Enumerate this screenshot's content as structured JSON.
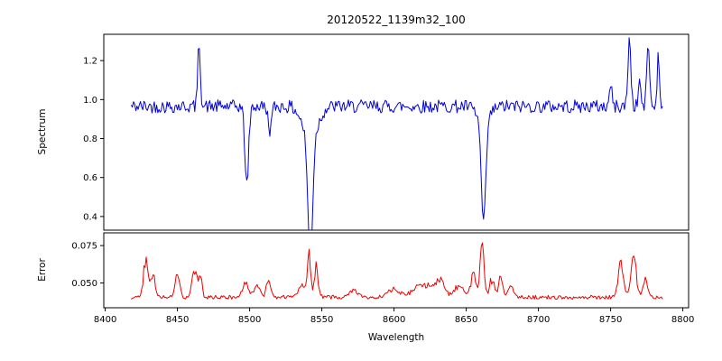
{
  "figure": {
    "title": "20120522_1139m32_100",
    "background": "#ffffff",
    "frame_color": "#000000"
  },
  "chart_data": [
    {
      "type": "line",
      "name": "spectrum",
      "title": "20120522_1139m32_100",
      "ylabel": "Spectrum",
      "color": "#0000dd",
      "xlim": [
        8399,
        8804
      ],
      "ylim": [
        0.33,
        1.335
      ],
      "yticks": [
        0.4,
        0.6,
        0.8,
        1.0,
        1.2
      ],
      "ytick_labels": [
        "0.4",
        "0.6",
        "0.8",
        "1.0",
        "1.2"
      ],
      "x_start": 8418,
      "x_end": 8786,
      "x_step": 0.8,
      "baseline": 0.965,
      "noise": 0.034,
      "seed": 42,
      "absorption_lines": [
        {
          "center": 8498,
          "depth": 0.4,
          "width": 1.3
        },
        {
          "center": 8542,
          "depth": 0.62,
          "width": 1.6
        },
        {
          "center": 8542,
          "depth": 0.17,
          "width": 5.0
        },
        {
          "center": 8662,
          "depth": 0.52,
          "width": 1.5
        },
        {
          "center": 8662,
          "depth": 0.09,
          "width": 4.0
        },
        {
          "center": 8514,
          "depth": 0.12,
          "width": 1.2
        }
      ],
      "emission_spikes": [
        {
          "center": 8465,
          "height": 0.33,
          "width": 0.9
        },
        {
          "center": 8763,
          "height": 0.35,
          "width": 1.0
        },
        {
          "center": 8776,
          "height": 0.34,
          "width": 0.9
        },
        {
          "center": 8783,
          "height": 0.26,
          "width": 0.8
        },
        {
          "center": 8750,
          "height": 0.12,
          "width": 0.8
        },
        {
          "center": 8770,
          "height": 0.14,
          "width": 0.8
        }
      ],
      "description": "Noisy stellar spectrum normalized near 1.0 with Ca II triplet absorption dips at 8498 (min ~0.58), 8542 (min ~0.36), 8662 (min ~0.46) and narrow upward spikes near 8465 and 8760-8785 reaching ~1.3"
    },
    {
      "type": "line",
      "name": "error",
      "ylabel": "Error",
      "xlabel": "Wavelength",
      "color": "#ee0000",
      "xlim": [
        8399,
        8804
      ],
      "ylim": [
        0.0335,
        0.0835
      ],
      "yticks": [
        0.05,
        0.075
      ],
      "ytick_labels": [
        "0.050",
        "0.075"
      ],
      "xticks": [
        8400,
        8450,
        8500,
        8550,
        8600,
        8650,
        8700,
        8750,
        8800
      ],
      "xtick_labels": [
        "8400",
        "8450",
        "8500",
        "8550",
        "8600",
        "8650",
        "8700",
        "8750",
        "8800"
      ],
      "x_start": 8418,
      "x_end": 8786,
      "x_step": 0.8,
      "baseline": 0.0405,
      "noise": 0.0013,
      "seed": 7,
      "bumps": [
        {
          "center": 8428,
          "height": 0.024,
          "width": 1.6
        },
        {
          "center": 8433,
          "height": 0.016,
          "width": 1.4
        },
        {
          "center": 8450,
          "height": 0.014,
          "width": 1.5
        },
        {
          "center": 8462,
          "height": 0.019,
          "width": 1.8
        },
        {
          "center": 8466,
          "height": 0.013,
          "width": 1.0
        },
        {
          "center": 8497,
          "height": 0.011,
          "width": 1.8
        },
        {
          "center": 8505,
          "height": 0.008,
          "width": 2.0
        },
        {
          "center": 8513,
          "height": 0.011,
          "width": 1.5
        },
        {
          "center": 8536,
          "height": 0.008,
          "width": 2.5
        },
        {
          "center": 8541,
          "height": 0.028,
          "width": 1.1
        },
        {
          "center": 8546,
          "height": 0.02,
          "width": 1.4
        },
        {
          "center": 8572,
          "height": 0.004,
          "width": 3.0
        },
        {
          "center": 8600,
          "height": 0.005,
          "width": 4.0
        },
        {
          "center": 8620,
          "height": 0.009,
          "width": 6.0
        },
        {
          "center": 8632,
          "height": 0.011,
          "width": 3.0
        },
        {
          "center": 8645,
          "height": 0.008,
          "width": 3.0
        },
        {
          "center": 8655,
          "height": 0.014,
          "width": 2.0
        },
        {
          "center": 8661,
          "height": 0.038,
          "width": 1.3
        },
        {
          "center": 8668,
          "height": 0.012,
          "width": 1.8
        },
        {
          "center": 8674,
          "height": 0.013,
          "width": 1.4
        },
        {
          "center": 8681,
          "height": 0.007,
          "width": 2.0
        },
        {
          "center": 8757,
          "height": 0.024,
          "width": 1.8
        },
        {
          "center": 8766,
          "height": 0.026,
          "width": 1.8
        },
        {
          "center": 8774,
          "height": 0.013,
          "width": 1.4
        }
      ],
      "description": "Error spectrum around 0.040 with peaks coincident with spectral features; largest peak ~0.079 at 8661"
    }
  ]
}
